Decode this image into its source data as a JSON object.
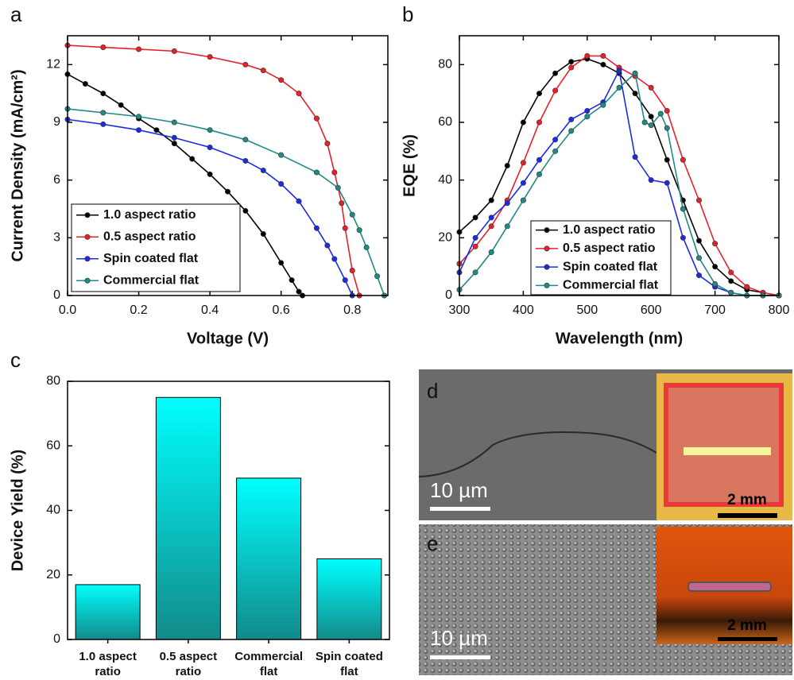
{
  "chart_data": [
    {
      "type": "line",
      "panel_label": "a",
      "x_label": "Voltage (V)",
      "y_label": "Current Density (mA/cm²)",
      "xlim": [
        0,
        0.9
      ],
      "ylim": [
        0,
        13.5
      ],
      "xticks": [
        {
          "value": 0,
          "label": "0.0"
        },
        0.2,
        0.4,
        0.6,
        0.8
      ],
      "yticks": [
        0,
        3,
        6,
        9,
        12
      ],
      "series": [
        {
          "name": "1.0 aspect ratio",
          "color": "#000000",
          "x": [
            0,
            0.05,
            0.1,
            0.15,
            0.2,
            0.25,
            0.3,
            0.35,
            0.4,
            0.45,
            0.5,
            0.55,
            0.6,
            0.63,
            0.65,
            0.66
          ],
          "values": [
            11.5,
            11.0,
            10.5,
            9.9,
            9.2,
            8.6,
            7.9,
            7.1,
            6.3,
            5.4,
            4.4,
            3.2,
            1.7,
            0.8,
            0.2,
            0
          ]
        },
        {
          "name": "0.5 aspect ratio",
          "color": "#e8202a",
          "x": [
            0,
            0.1,
            0.2,
            0.3,
            0.4,
            0.5,
            0.55,
            0.6,
            0.65,
            0.7,
            0.73,
            0.75,
            0.77,
            0.78,
            0.8,
            0.82
          ],
          "values": [
            13.0,
            12.9,
            12.8,
            12.7,
            12.4,
            12.0,
            11.7,
            11.2,
            10.5,
            9.2,
            7.9,
            6.4,
            4.8,
            3.5,
            1.3,
            0
          ]
        },
        {
          "name": "Spin coated flat",
          "color": "#1c2ce0",
          "x": [
            0,
            0.1,
            0.2,
            0.3,
            0.4,
            0.5,
            0.55,
            0.6,
            0.65,
            0.7,
            0.73,
            0.75,
            0.78,
            0.8
          ],
          "values": [
            9.15,
            8.9,
            8.6,
            8.2,
            7.7,
            7.0,
            6.5,
            5.8,
            4.9,
            3.5,
            2.6,
            1.9,
            0.8,
            0
          ]
        },
        {
          "name": "Commercial flat",
          "color": "#1f8a86",
          "x": [
            0,
            0.1,
            0.2,
            0.3,
            0.4,
            0.5,
            0.6,
            0.7,
            0.76,
            0.8,
            0.82,
            0.84,
            0.87,
            0.89
          ],
          "values": [
            9.7,
            9.5,
            9.3,
            9.0,
            8.6,
            8.1,
            7.3,
            6.4,
            5.6,
            4.2,
            3.4,
            2.5,
            1.0,
            0
          ]
        }
      ],
      "legend": "lower-left"
    },
    {
      "type": "line",
      "panel_label": "b",
      "x_label": "Wavelength (nm)",
      "y_label": "EQE (%)",
      "xlim": [
        300,
        800
      ],
      "ylim": [
        0,
        90
      ],
      "xticks": [
        300,
        400,
        500,
        600,
        700,
        800
      ],
      "yticks": [
        0,
        20,
        40,
        60,
        80
      ],
      "series": [
        {
          "name": "1.0 aspect ratio",
          "color": "#000000",
          "x": [
            300,
            325,
            350,
            375,
            400,
            425,
            450,
            475,
            500,
            525,
            550,
            575,
            600,
            625,
            650,
            675,
            700,
            725,
            750,
            775,
            800
          ],
          "values": [
            22,
            27,
            33,
            45,
            60,
            70,
            77,
            81,
            82,
            80,
            77,
            70,
            62,
            47,
            33,
            19,
            10,
            5,
            2,
            1,
            0
          ]
        },
        {
          "name": "0.5 aspect ratio",
          "color": "#e8202a",
          "x": [
            300,
            325,
            350,
            375,
            400,
            425,
            450,
            475,
            500,
            525,
            550,
            575,
            600,
            625,
            650,
            675,
            700,
            725,
            750,
            775,
            800
          ],
          "values": [
            11,
            17,
            24,
            33,
            46,
            60,
            71,
            79,
            83,
            83,
            79,
            76,
            72,
            64,
            47,
            33,
            18,
            8,
            3,
            1,
            0
          ]
        },
        {
          "name": "Spin coated flat",
          "color": "#1c2ce0",
          "x": [
            300,
            325,
            350,
            375,
            400,
            425,
            450,
            475,
            500,
            525,
            550,
            575,
            600,
            625,
            650,
            675,
            700,
            725,
            750,
            775,
            800
          ],
          "values": [
            8,
            20,
            27,
            32,
            39,
            47,
            54,
            61,
            64,
            67,
            78,
            48,
            40,
            39,
            20,
            7,
            3,
            1,
            0,
            0,
            0
          ]
        },
        {
          "name": "Commercial flat",
          "color": "#1f8a86",
          "x": [
            300,
            325,
            350,
            375,
            400,
            425,
            450,
            475,
            500,
            525,
            550,
            575,
            590,
            600,
            615,
            625,
            650,
            675,
            700,
            725,
            750,
            775,
            800
          ],
          "values": [
            2,
            8,
            15,
            24,
            33,
            42,
            50,
            57,
            62,
            66,
            72,
            77,
            60,
            59,
            63,
            58,
            30,
            13,
            4,
            1,
            0,
            0,
            0
          ]
        }
      ],
      "legend": "lower-center"
    },
    {
      "type": "bar",
      "panel_label": "c",
      "y_label": "Device Yield (%)",
      "categories": [
        "1.0 aspect ratio",
        "0.5 aspect ratio",
        "Commercial flat",
        "Spin coated flat"
      ],
      "values": [
        17,
        75,
        50,
        25
      ],
      "color": "#00ffff",
      "ylim": [
        0,
        80
      ],
      "yticks": [
        0,
        20,
        40,
        60,
        80
      ]
    }
  ],
  "images": [
    {
      "panel_label": "d",
      "scale_bar": "10 µm",
      "inset_scale_bar": "2 mm"
    },
    {
      "panel_label": "e",
      "scale_bar": "10 µm",
      "inset_scale_bar": "2 mm"
    }
  ]
}
